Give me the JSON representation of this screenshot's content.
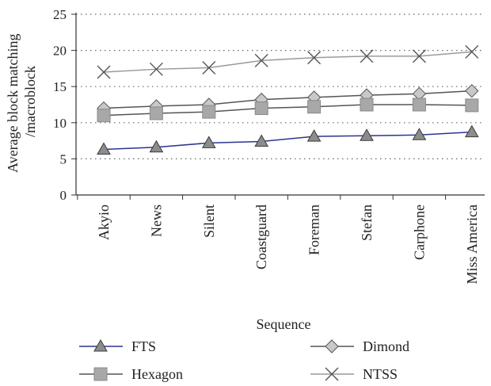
{
  "chart_data": {
    "type": "line",
    "title": "",
    "xlabel": "Sequence",
    "ylabel_lines": [
      "Average block matching",
      "/macroblock"
    ],
    "ylim": [
      0,
      25
    ],
    "yticks": [
      0,
      5,
      10,
      15,
      20,
      25
    ],
    "grid": "horizontal-dotted",
    "legend_position": "bottom",
    "categories": [
      "Akyio",
      "News",
      "Silent",
      "Coastguard",
      "Foreman",
      "Stefan",
      "Carphone",
      "Miss America"
    ],
    "series": [
      {
        "name": "FTS",
        "marker": "triangle",
        "color": "#2b3590",
        "marker_fill": "#8c8c8c",
        "values": [
          6.3,
          6.6,
          7.2,
          7.4,
          8.1,
          8.2,
          8.3,
          8.7
        ]
      },
      {
        "name": "Dimond",
        "marker": "diamond",
        "color": "#555555",
        "marker_fill": "#c8c8c8",
        "values": [
          12.0,
          12.3,
          12.5,
          13.2,
          13.5,
          13.8,
          14.0,
          14.4
        ]
      },
      {
        "name": "Hexagon",
        "marker": "square",
        "color": "#555555",
        "marker_fill": "#a8a8a8",
        "values": [
          11.0,
          11.3,
          11.5,
          12.0,
          12.2,
          12.5,
          12.5,
          12.4
        ]
      },
      {
        "name": "NTSS",
        "marker": "x",
        "color": "#9a9a9a",
        "marker_fill": "#555555",
        "values": [
          17.0,
          17.4,
          17.6,
          18.6,
          19.0,
          19.2,
          19.2,
          19.8
        ]
      }
    ]
  }
}
